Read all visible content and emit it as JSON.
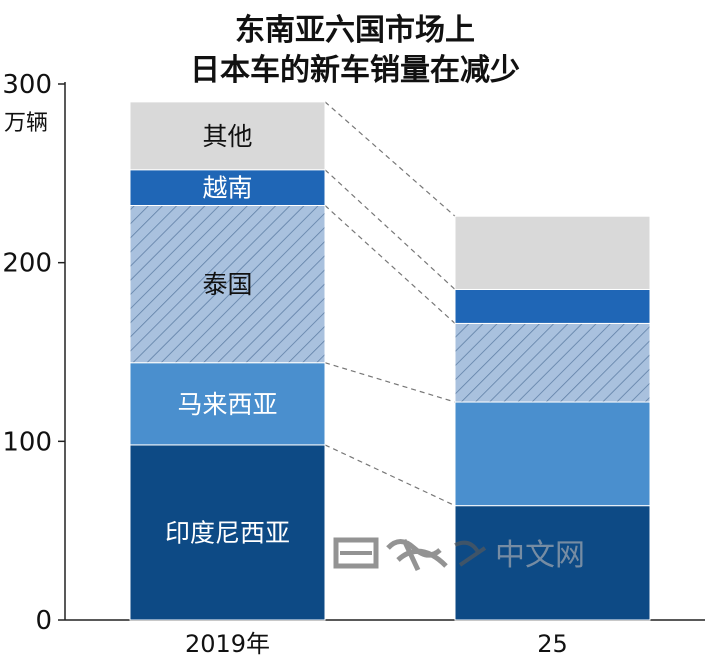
{
  "chart_data": {
    "type": "bar",
    "stacked": true,
    "title": [
      "东南亚六国市场上",
      "日本车的新车销量在减少"
    ],
    "unit": "万辆",
    "ylim": [
      0,
      300
    ],
    "yticks": [
      0,
      100,
      200,
      300
    ],
    "categories": [
      "2019年",
      "25"
    ],
    "series": [
      {
        "name": "印度尼西亚",
        "values": [
          98,
          64
        ],
        "color": "#0d4a85",
        "label_color": "#ffffff"
      },
      {
        "name": "马来西亚",
        "values": [
          46,
          58
        ],
        "color": "#4a8fce",
        "label_color": "#ffffff"
      },
      {
        "name": "泰国",
        "values": [
          88,
          44
        ],
        "color": "#a9c1de",
        "hatch": true,
        "label_color": "#111111"
      },
      {
        "name": "越南",
        "values": [
          20,
          19
        ],
        "color": "#1f66b6",
        "label_color": "#ffffff"
      },
      {
        "name": "其他",
        "values": [
          38,
          41
        ],
        "color": "#d9d9d9",
        "label_color": "#111111"
      }
    ],
    "connectors": "dashed",
    "grid": false,
    "legend": "inside-first-bar"
  },
  "watermark": {
    "text": "中文网",
    "logo_icon": "nikkei-calligraphy-logo"
  }
}
